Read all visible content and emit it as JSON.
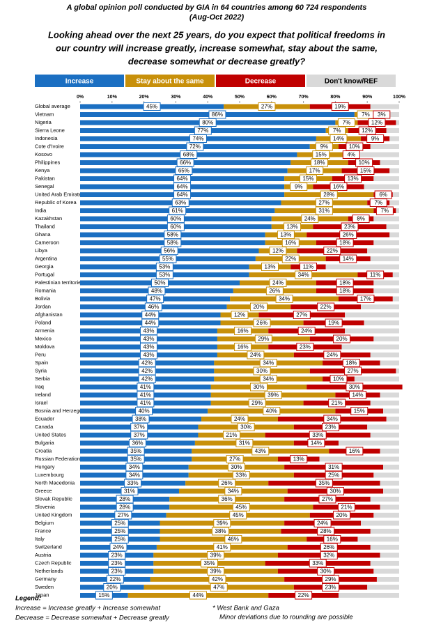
{
  "chart_data": {
    "type": "stacked-bar-horizontal",
    "title": "A global opinion poll conducted by GIA in 64 countries among 60 724 respondents",
    "subtitle": "(Aug-Oct 2022)",
    "question": [
      "Looking ahead over the next 25 years, do you expect that political  freedoms in",
      "our country will increase greatly, increase somewhat, stay about the same,",
      "decrease somewhat or decrease greatly?"
    ],
    "categories": [
      "Global average",
      "Vietnam",
      "Nigeria",
      "Sierra Leone",
      "Indonesia",
      "Cote d'Ivoire",
      "Kosovo",
      "Philippines",
      "Kenya",
      "Pakistan",
      "Senegal",
      "United Arab Emirates",
      "Republic of Korea",
      "India",
      "Kazakhstan",
      "Thailand",
      "Ghana",
      "Cameroon",
      "Libya",
      "Argentina",
      "Georgia",
      "Portugal",
      "Palestinian territories*",
      "Romania",
      "Bolivia",
      "Jordan",
      "Afghanistan",
      "Poland",
      "Armenia",
      "Mexico",
      "Moldova",
      "Peru",
      "Spain",
      "Syria",
      "Serbia",
      "Iraq",
      "Ireland",
      "Israel",
      "Bosnia and Herzegovina",
      "Ecuador",
      "Canada",
      "United States",
      "Bulgaria",
      "Croatia",
      "Russian Federation",
      "Hungary",
      "Luxembourg",
      "North Macedonia",
      "Greece",
      "Slovak Republic",
      "Slovenia",
      "United Kingdom",
      "Belgium",
      "France",
      "Italy",
      "Switzerland",
      "Austria",
      "Czech Republic",
      "Netherlands",
      "Germany",
      "Sweden",
      "Japan"
    ],
    "series": [
      {
        "name": "Increase",
        "color": "#1b6fc2",
        "values": [
          45,
          86,
          80,
          77,
          74,
          72,
          68,
          66,
          65,
          64,
          64,
          64,
          63,
          61,
          60,
          60,
          58,
          58,
          56,
          55,
          53,
          53,
          50,
          48,
          47,
          46,
          44,
          44,
          43,
          43,
          43,
          43,
          42,
          42,
          42,
          41,
          41,
          41,
          40,
          38,
          37,
          37,
          36,
          35,
          35,
          34,
          34,
          33,
          31,
          28,
          28,
          27,
          25,
          25,
          25,
          24,
          23,
          23,
          23,
          22,
          20,
          15
        ],
        "value_labels": [
          "45%",
          "86%",
          "80%",
          "77%",
          "74%",
          "72%",
          "68%",
          "66%",
          "65%",
          "64%",
          "64%",
          "64%",
          "63%",
          "61%",
          "60%",
          "60%",
          "58%",
          "58%",
          "56%",
          "55%",
          "53%",
          "53%",
          "50%",
          "48%",
          "47%",
          "46%",
          "44%",
          "44%",
          "43%",
          "43%",
          "43%",
          "43%",
          "42%",
          "42%",
          "42%",
          "41%",
          "41%",
          "41%",
          "40%",
          "38%",
          "37%",
          "37%",
          "36%",
          "35%",
          "35%",
          "34%",
          "34%",
          "33%",
          "31%",
          "28%",
          "28%",
          "27%",
          "25%",
          "25%",
          "25%",
          "24%",
          "23%",
          "23%",
          "23%",
          "22%",
          "20%",
          "15%"
        ]
      },
      {
        "name": "Stay about the same",
        "color": "#c8900a",
        "values": [
          27,
          7,
          7,
          7,
          14,
          9,
          15,
          18,
          17,
          15,
          9,
          28,
          27,
          31,
          24,
          13,
          13,
          16,
          12,
          22,
          13,
          34,
          24,
          26,
          34,
          20,
          12,
          26,
          16,
          29,
          16,
          24,
          34,
          30,
          34,
          30,
          39,
          29,
          40,
          24,
          30,
          21,
          31,
          43,
          27,
          30,
          33,
          26,
          34,
          36,
          45,
          45,
          39,
          38,
          46,
          41,
          39,
          35,
          39,
          42,
          47,
          44
        ],
        "value_labels": [
          "27%",
          "7%",
          "7%",
          "7%",
          "14%",
          "9%",
          "15%",
          "18%",
          "17%",
          "15%",
          "9%",
          "28%",
          "27%",
          "31%",
          "24%",
          "13%",
          "13%",
          "16%",
          "12%",
          "22%",
          "13%",
          "34%",
          "24%",
          "26%",
          "34%",
          "20%",
          "12%",
          "26%",
          "16%",
          "29%",
          "16%",
          "24%",
          "34%",
          "30%",
          "34%",
          "30%",
          "39%",
          "29%",
          "40%",
          "24%",
          "30%",
          "21%",
          "31%",
          "43%",
          "27%",
          "30%",
          "33%",
          "26%",
          "34%",
          "36%",
          "45%",
          "45%",
          "39%",
          "38%",
          "46%",
          "41%",
          "39%",
          "35%",
          "39%",
          "42%",
          "47%",
          "44%"
        ]
      },
      {
        "name": "Decrease",
        "color": "#c00000",
        "values": [
          19,
          3,
          12,
          12,
          9,
          10,
          4,
          10,
          15,
          13,
          16,
          6,
          7,
          7,
          8,
          23,
          26,
          18,
          22,
          14,
          11,
          11,
          18,
          18,
          17,
          22,
          27,
          19,
          24,
          20,
          23,
          24,
          18,
          27,
          10,
          30,
          14,
          21,
          15,
          34,
          23,
          33,
          14,
          16,
          13,
          31,
          25,
          35,
          30,
          27,
          21,
          20,
          24,
          28,
          16,
          26,
          32,
          33,
          30,
          29,
          23,
          22
        ],
        "value_labels": [
          "19%",
          "3%",
          "12%",
          "12%",
          "9%",
          "10%",
          "4%",
          "10%",
          "15%",
          "13%",
          "16%",
          "6%",
          "7%",
          "7%",
          "8%",
          "23%",
          "26%",
          "18%",
          "22%",
          "14%",
          "11%",
          "11%",
          "18%",
          "18%",
          "17%",
          "22%",
          "27%",
          "19%",
          "24%",
          "20%",
          "23%",
          "24%",
          "18%",
          "27%",
          "10%",
          "30%",
          "14%",
          "21%",
          "15%",
          "34%",
          "23%",
          "33%",
          "14%",
          "16%",
          "13%",
          "31%",
          "25%",
          "35%",
          "30%",
          "27%",
          "21%",
          "20%",
          "24%",
          "28%",
          "16%",
          "26%",
          "32%",
          "33%",
          "30%",
          "29%",
          "23%",
          "22%"
        ]
      },
      {
        "name": "Don't know/REF",
        "color": "#d9d9d9",
        "values": [
          9,
          4,
          1,
          4,
          3,
          9,
          13,
          6,
          3,
          8,
          11,
          2,
          3,
          1,
          8,
          4,
          3,
          8,
          10,
          9,
          23,
          2,
          8,
          8,
          2,
          12,
          17,
          11,
          17,
          8,
          18,
          9,
          6,
          1,
          14,
          0,
          6,
          9,
          5,
          4,
          10,
          9,
          19,
          6,
          25,
          5,
          8,
          6,
          5,
          9,
          6,
          8,
          12,
          9,
          13,
          9,
          6,
          9,
          8,
          7,
          10,
          19
        ]
      }
    ],
    "xlim": [
      0,
      100
    ],
    "xticks": [
      {
        "value": 0,
        "label": "0%"
      },
      {
        "value": 10,
        "label": "10%"
      },
      {
        "value": 20,
        "label": "20%"
      },
      {
        "value": 30,
        "label": "30%"
      },
      {
        "value": 40,
        "label": "40%"
      },
      {
        "value": 50,
        "label": "50%"
      },
      {
        "value": 60,
        "label": "60%"
      },
      {
        "value": 70,
        "label": "70%"
      },
      {
        "value": 80,
        "label": "80%"
      },
      {
        "value": 90,
        "label": "90%"
      },
      {
        "value": 100,
        "label": "100%"
      }
    ],
    "footer": {
      "legend_title": "Legend:",
      "notes": [
        "Increase = Increase greatly + Increase somewhat",
        "Decrease = Decrease somewhat + Decrease greatly"
      ],
      "footnotes": [
        "* West Bank and Gaza",
        "Minor deviations due to rounding are possible"
      ]
    }
  }
}
